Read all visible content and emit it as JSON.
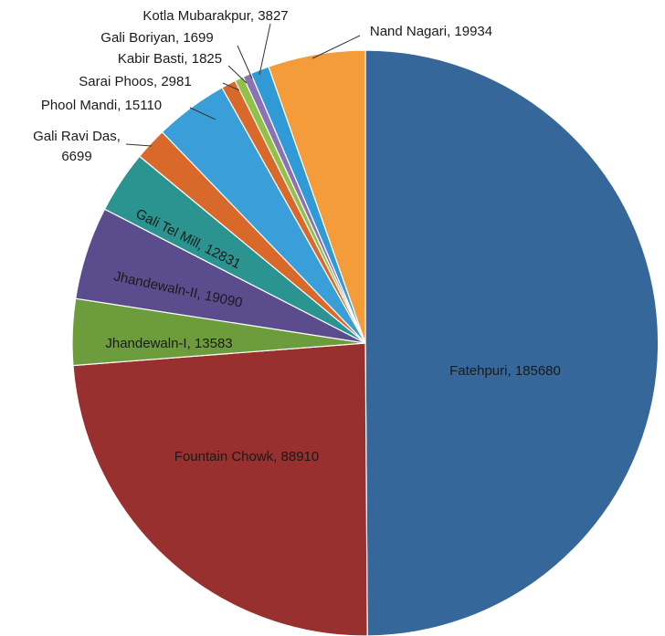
{
  "chart_data": {
    "type": "pie",
    "title": "",
    "slices": [
      {
        "label": "Fatehpuri",
        "value": 185680,
        "color": "#35679a",
        "text": "Fatehpuri, 185680"
      },
      {
        "label": "Fountain Chowk",
        "value": 88910,
        "color": "#97302f",
        "text": "Fountain Chowk, 88910"
      },
      {
        "label": "Jhandewaln-I",
        "value": 13583,
        "color": "#6c9c3b",
        "text": "Jhandewaln-I, 13583"
      },
      {
        "label": "Jhandewaln-II",
        "value": 19090,
        "color": "#5b4c8e",
        "text": "Jhandewaln-II, 19090"
      },
      {
        "label": "Gali Tel Mill",
        "value": 12831,
        "color": "#2b9491",
        "text": "Gali Tel Mill, 12831"
      },
      {
        "label": "Gali Ravi Das",
        "value": 6699,
        "color": "#d8692a",
        "text_lines": [
          "Gali Ravi Das,",
          "6699"
        ]
      },
      {
        "label": "Phool Mandi",
        "value": 15110,
        "color": "#3a9ed8",
        "text": "Phool Mandi, 15110"
      },
      {
        "label": "Sarai Phoos",
        "value": 2981,
        "color": "#d8692a",
        "text": "Sarai Phoos, 2981"
      },
      {
        "label": "Kabir Basti",
        "value": 1825,
        "color": "#93c047",
        "text": "Kabir Basti, 1825"
      },
      {
        "label": "Gali Boriyan",
        "value": 1699,
        "color": "#8a72b4",
        "text": "Gali Boriyan, 1699"
      },
      {
        "label": "Kotla Mubarakpur",
        "value": 3827,
        "color": "#2f9ad6",
        "text": "Kotla Mubarakpur, 3827"
      },
      {
        "label": "Nand Nagari",
        "value": 19934,
        "color": "#f49c3a",
        "text": "Nand Nagari, 19934"
      }
    ]
  }
}
